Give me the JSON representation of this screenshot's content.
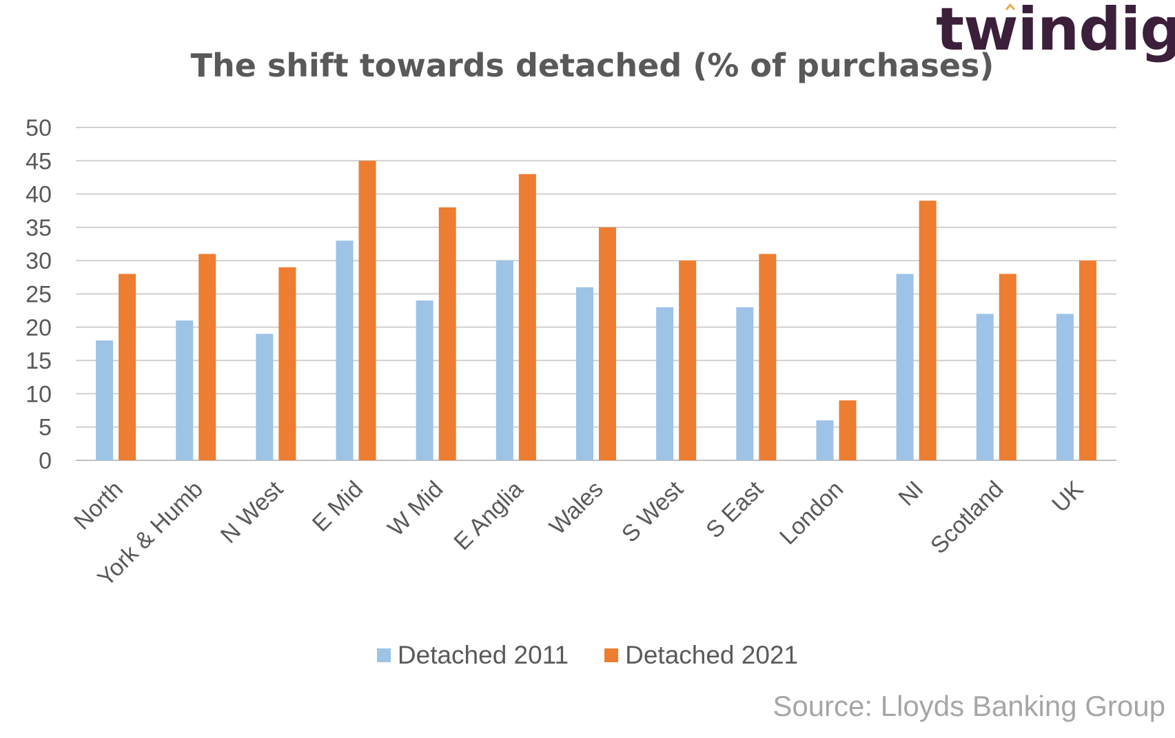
{
  "brand": {
    "logo_text": "twindig",
    "logo_color": "#3c1f3a",
    "logo_accent": "#f4a64a"
  },
  "source_text": "Source: Lloyds Banking Group",
  "chart_data": {
    "type": "bar",
    "title": "The shift towards detached (% of purchases)",
    "xlabel": "",
    "ylabel": "",
    "ylim": [
      0,
      50
    ],
    "yticks": [
      0,
      5,
      10,
      15,
      20,
      25,
      30,
      35,
      40,
      45,
      50
    ],
    "grid": true,
    "legend_position": "bottom",
    "categories": [
      "North",
      "York & Humb",
      "N West",
      "E Mid",
      "W Mid",
      "E Anglia",
      "Wales",
      "S West",
      "S East",
      "London",
      "NI",
      "Scotland",
      "UK"
    ],
    "series": [
      {
        "name": "Detached 2011",
        "color": "#9dc3e6",
        "values": [
          18,
          21,
          19,
          33,
          24,
          30,
          26,
          23,
          23,
          6,
          28,
          22,
          22
        ]
      },
      {
        "name": "Detached 2021",
        "color": "#ed7d31",
        "values": [
          28,
          31,
          29,
          45,
          38,
          43,
          35,
          30,
          31,
          9,
          39,
          28,
          30
        ]
      }
    ]
  }
}
